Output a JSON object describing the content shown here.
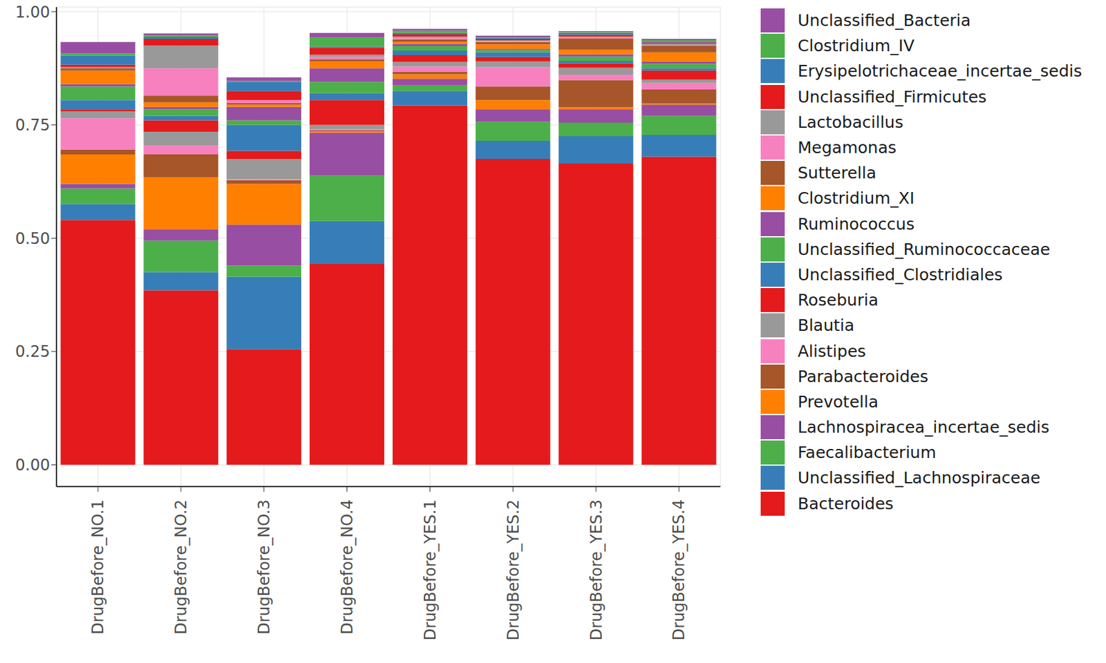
{
  "chart_data": {
    "type": "bar",
    "stacked": true,
    "grid": true,
    "legend": "right",
    "categories": [
      "DrugBefore_NO.1",
      "DrugBefore_NO.2",
      "DrugBefore_NO.3",
      "DrugBefore_NO.4",
      "DrugBefore_YES.1",
      "DrugBefore_YES.2",
      "DrugBefore_YES.3",
      "DrugBefore_YES.4"
    ],
    "ylim": [
      -0.048,
      1.01
    ],
    "yticks": [
      {
        "value": 0,
        "label": "0.00"
      },
      {
        "value": 0.25,
        "label": "0.25"
      },
      {
        "value": 0.5,
        "label": "0.50"
      },
      {
        "value": 0.75,
        "label": "0.75"
      },
      {
        "value": 1,
        "label": "1.00"
      }
    ],
    "series": [
      {
        "name": "Unclassified_Bacteria",
        "color": "#984EA3",
        "values": [
          0.025,
          0.004,
          0.008,
          0.01,
          0.004,
          0.003,
          0.002,
          0.003
        ]
      },
      {
        "name": "Clostridium_IV",
        "color": "#4DAF4A",
        "values": [
          0.005,
          0.004,
          0.002,
          0.02,
          0.005,
          0.002,
          0.002,
          0.002
        ]
      },
      {
        "name": "Erysipelotrichaceae_incertae_sedis",
        "color": "#377EB8",
        "values": [
          0.02,
          0.004,
          0.02,
          0.003,
          0.003,
          0.002,
          0.004,
          0.003
        ]
      },
      {
        "name": "Unclassified_Firmicutes",
        "color": "#E41A1C",
        "values": [
          0.005,
          0.015,
          0.02,
          0.015,
          0.005,
          0.003,
          0.004,
          0.003
        ]
      },
      {
        "name": "Lactobacillus",
        "color": "#999999",
        "values": [
          0.003,
          0.05,
          0.0,
          0.005,
          0.003,
          0.002,
          0.002,
          0.002
        ]
      },
      {
        "name": "Megamonas",
        "color": "#F781BF",
        "values": [
          0.0,
          0.06,
          0.007,
          0.005,
          0.003,
          0.002,
          0.002,
          0.002
        ]
      },
      {
        "name": "Sutterella",
        "color": "#A65628",
        "values": [
          0.005,
          0.015,
          0.003,
          0.005,
          0.005,
          0.005,
          0.025,
          0.015
        ]
      },
      {
        "name": "Clostridium_XI",
        "color": "#FF7F00",
        "values": [
          0.03,
          0.01,
          0.005,
          0.015,
          0.005,
          0.01,
          0.01,
          0.02
        ]
      },
      {
        "name": "Ruminococcus",
        "color": "#984EA3",
        "values": [
          0.005,
          0.005,
          0.03,
          0.03,
          0.005,
          0.003,
          0.005,
          0.005
        ]
      },
      {
        "name": "Unclassified_Ruminococcaceae",
        "color": "#4DAF4A",
        "values": [
          0.03,
          0.015,
          0.01,
          0.025,
          0.01,
          0.005,
          0.01,
          0.01
        ]
      },
      {
        "name": "Unclassified_Clostridiales",
        "color": "#377EB8",
        "values": [
          0.02,
          0.01,
          0.057,
          0.015,
          0.01,
          0.01,
          0.005,
          0.005
        ]
      },
      {
        "name": "Roseburia",
        "color": "#E41A1C",
        "values": [
          0.005,
          0.025,
          0.018,
          0.055,
          0.015,
          0.01,
          0.01,
          0.02
        ]
      },
      {
        "name": "Blautia",
        "color": "#999999",
        "values": [
          0.015,
          0.03,
          0.045,
          0.01,
          0.01,
          0.012,
          0.015,
          0.007
        ]
      },
      {
        "name": "Alistipes",
        "color": "#F781BF",
        "values": [
          0.07,
          0.02,
          0.002,
          0.002,
          0.012,
          0.043,
          0.012,
          0.015
        ]
      },
      {
        "name": "Parabacteroides",
        "color": "#A65628",
        "values": [
          0.01,
          0.05,
          0.008,
          0.002,
          0.005,
          0.03,
          0.06,
          0.03
        ]
      },
      {
        "name": "Prevotella",
        "color": "#FF7F00",
        "values": [
          0.065,
          0.115,
          0.09,
          0.003,
          0.01,
          0.02,
          0.004,
          0.003
        ]
      },
      {
        "name": "Lachnospiracea_incertae_sedis",
        "color": "#984EA3",
        "values": [
          0.01,
          0.025,
          0.09,
          0.095,
          0.015,
          0.028,
          0.03,
          0.025
        ]
      },
      {
        "name": "Faecalibacterium",
        "color": "#4DAF4A",
        "values": [
          0.035,
          0.07,
          0.025,
          0.1,
          0.012,
          0.042,
          0.03,
          0.042
        ]
      },
      {
        "name": "Unclassified_Lachnospiraceae",
        "color": "#377EB8",
        "values": [
          0.035,
          0.04,
          0.16,
          0.095,
          0.032,
          0.04,
          0.06,
          0.048
        ]
      },
      {
        "name": "Bacteroides",
        "color": "#E41A1C",
        "values": [
          0.54,
          0.385,
          0.255,
          0.443,
          0.793,
          0.675,
          0.665,
          0.68
        ]
      }
    ]
  }
}
